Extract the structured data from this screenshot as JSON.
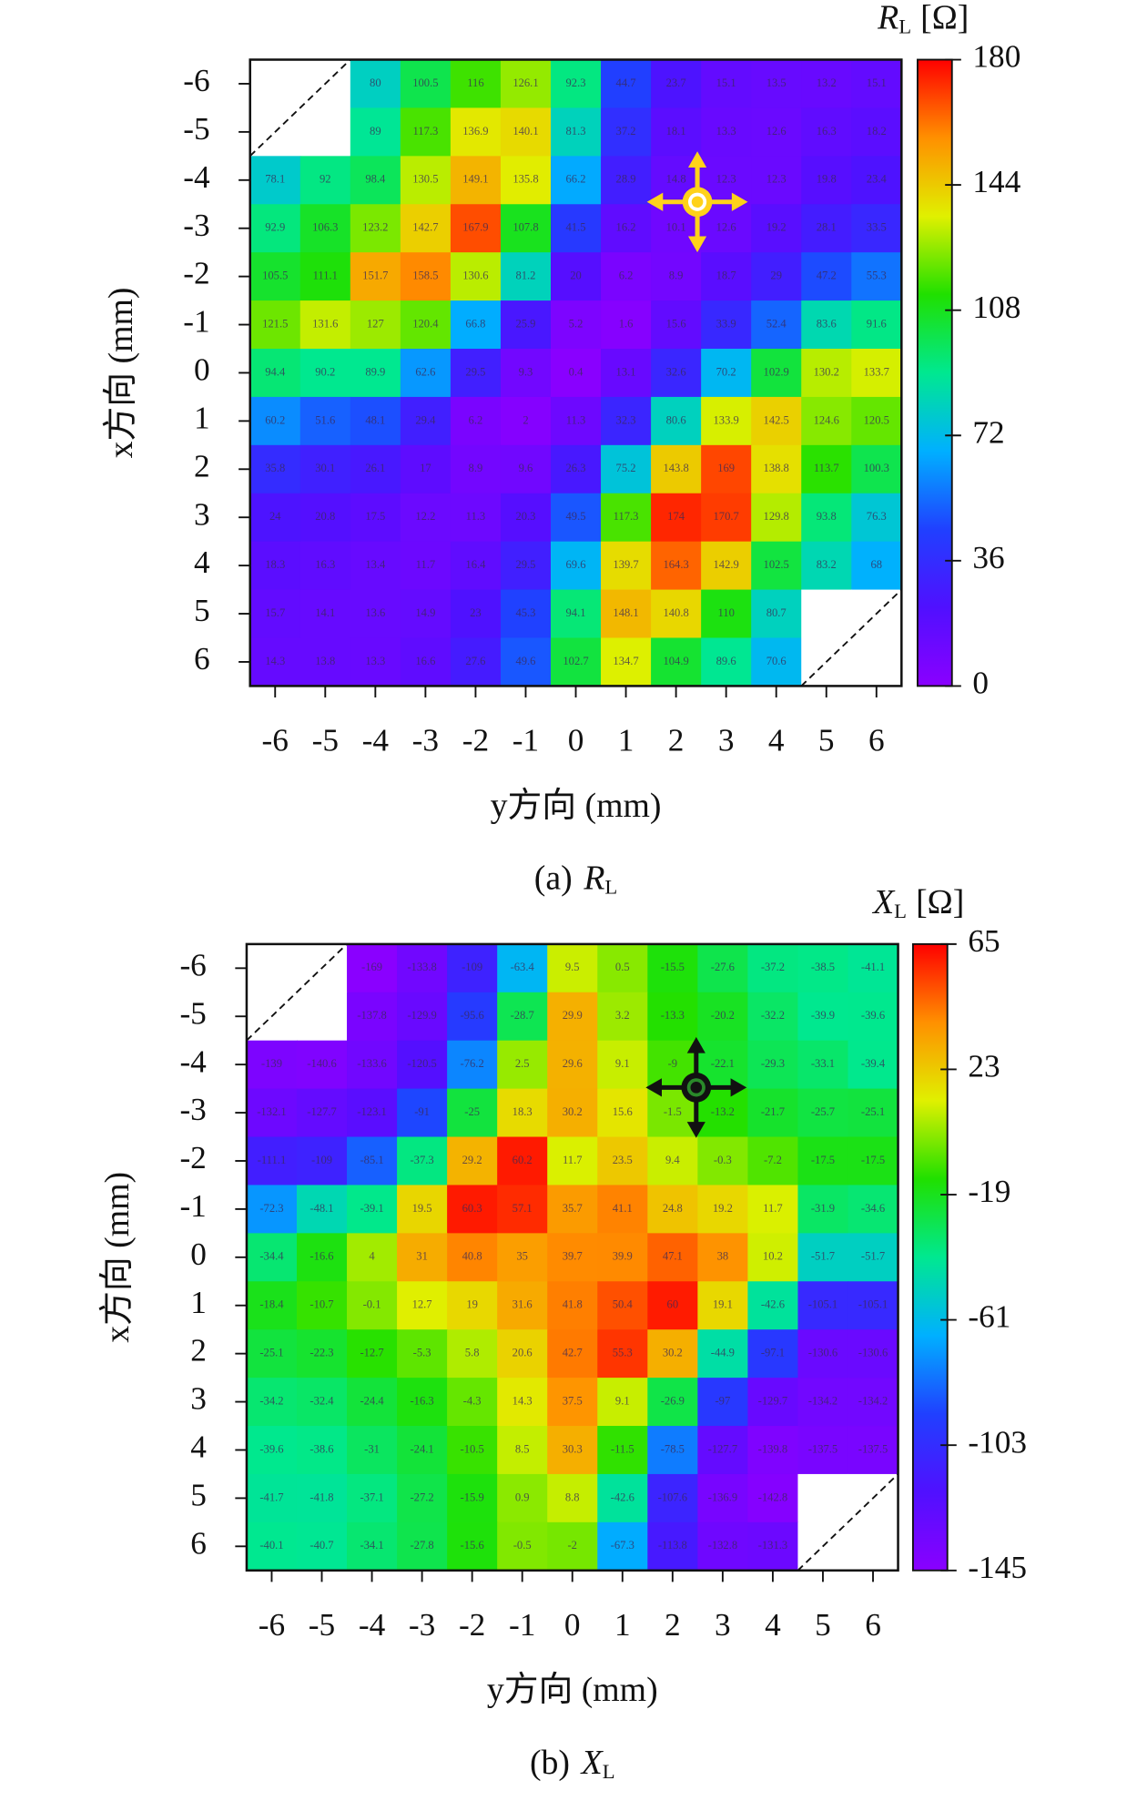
{
  "chart_data": [
    {
      "type": "heatmap",
      "colorbar_title": {
        "symbol": "R",
        "subscript": "L",
        "unit": "[Ω]"
      },
      "caption": {
        "label": "(a)",
        "symbol": "R",
        "subscript": "L"
      },
      "x_label": "y方向 (mm)",
      "y_label": "x方向 (mm)",
      "xlim": [
        -6.5,
        6.5
      ],
      "xticks": [
        -6,
        -5,
        -4,
        -3,
        -2,
        -1,
        0,
        1,
        2,
        3,
        4,
        5,
        6
      ],
      "ylim": [
        6.5,
        -6.5
      ],
      "yticks": [
        -6,
        -5,
        -4,
        -3,
        -2,
        -1,
        0,
        1,
        2,
        3,
        4,
        5,
        6
      ],
      "zlim": [
        0,
        180
      ],
      "zticks": [
        0,
        36,
        72,
        108,
        144,
        180
      ],
      "colormap": [
        "#8a00ff",
        "#5010ff",
        "#2040ff",
        "#00b0ff",
        "#00e890",
        "#20e000",
        "#e0f000",
        "#ff9000",
        "#ff0000"
      ],
      "values": [
        [
          null,
          null,
          80,
          100.5,
          116,
          126.1,
          92.3,
          44.7,
          23.7,
          15.1,
          13.5,
          13.2,
          15.1
        ],
        [
          null,
          null,
          89,
          117.3,
          136.9,
          140.1,
          81.3,
          37.2,
          18.1,
          13.3,
          12.6,
          16.3,
          18.2
        ],
        [
          78.1,
          92,
          98.4,
          130.5,
          149.1,
          135.8,
          66.2,
          28.9,
          14.8,
          12.3,
          12.3,
          19.8,
          23.4
        ],
        [
          92.9,
          106.3,
          123.2,
          142.7,
          167.9,
          107.8,
          41.5,
          16.2,
          10.1,
          12.6,
          19.2,
          28.1,
          33.5
        ],
        [
          105.5,
          111.1,
          151.7,
          158.5,
          130.6,
          81.2,
          20,
          6.2,
          8.9,
          18.7,
          29,
          47.2,
          55.3
        ],
        [
          121.5,
          131.6,
          127,
          120.4,
          66.8,
          25.9,
          5.2,
          1.6,
          15.6,
          33.9,
          52.4,
          83.6,
          91.6
        ],
        [
          94.4,
          90.2,
          89.9,
          62.6,
          29.5,
          9.3,
          0.4,
          13.1,
          32.6,
          70.2,
          102.9,
          130.2,
          133.7
        ],
        [
          60.2,
          51.6,
          48.1,
          29.4,
          6.2,
          2,
          11.3,
          32.3,
          80.6,
          133.9,
          142.5,
          124.6,
          120.5
        ],
        [
          35.8,
          30.1,
          26.1,
          17,
          8.9,
          9.6,
          26.3,
          75.2,
          143.8,
          169,
          138.8,
          113.7,
          100.3
        ],
        [
          24,
          20.8,
          17.5,
          12.2,
          11.3,
          20.3,
          49.5,
          117.3,
          174,
          170.7,
          129.8,
          93.8,
          76.3
        ],
        [
          18.3,
          16.3,
          13.4,
          11.7,
          16.4,
          29.5,
          69.6,
          139.7,
          164.3,
          142.9,
          102.5,
          83.2,
          68
        ],
        [
          15.7,
          14.1,
          13.6,
          14.9,
          23,
          45.3,
          94.1,
          148.1,
          140.8,
          110,
          80.7,
          null,
          null
        ],
        [
          14.3,
          13.8,
          13.3,
          16.6,
          27.6,
          49.6,
          102.7,
          134.7,
          104.9,
          89.6,
          70.6,
          null,
          null
        ]
      ]
    },
    {
      "type": "heatmap",
      "colorbar_title": {
        "symbol": "X",
        "subscript": "L",
        "unit": "[Ω]"
      },
      "caption": {
        "label": "(b)",
        "symbol": "X",
        "subscript": "L"
      },
      "x_label": "y方向 (mm)",
      "y_label": "x方向 (mm)",
      "xlim": [
        -6.5,
        6.5
      ],
      "xticks": [
        -6,
        -5,
        -4,
        -3,
        -2,
        -1,
        0,
        1,
        2,
        3,
        4,
        5,
        6
      ],
      "ylim": [
        6.5,
        -6.5
      ],
      "yticks": [
        -6,
        -5,
        -4,
        -3,
        -2,
        -1,
        0,
        1,
        2,
        3,
        4,
        5,
        6
      ],
      "zlim": [
        -145,
        65
      ],
      "zticks": [
        -145,
        -103,
        -61,
        -19,
        23,
        65
      ],
      "colormap": [
        "#8a00ff",
        "#5010ff",
        "#2040ff",
        "#00b0ff",
        "#00e890",
        "#20e000",
        "#e0f000",
        "#ff9000",
        "#ff0000"
      ],
      "values": [
        [
          null,
          null,
          -169,
          -133.8,
          -109,
          -63.4,
          9.5,
          0.5,
          -15.5,
          -27.6,
          -37.2,
          -38.5,
          -41.1
        ],
        [
          null,
          null,
          -137.8,
          -129.9,
          -95.6,
          -28.7,
          29.9,
          3.2,
          -13.3,
          -20.2,
          -32.2,
          -39.9,
          -39.6
        ],
        [
          -139,
          -140.6,
          -133.6,
          -120.5,
          -76.2,
          2.5,
          29.6,
          9.1,
          -9,
          -22.1,
          -29.3,
          -33.1,
          -39.4
        ],
        [
          -132.1,
          -127.7,
          -123.1,
          -91,
          -25,
          18.3,
          30.2,
          15.6,
          -1.5,
          -13.2,
          -21.7,
          -25.7,
          -25.1
        ],
        [
          -111.1,
          -109,
          -85.1,
          -37.3,
          29.2,
          60.2,
          11.7,
          23.5,
          9.4,
          -0.3,
          -7.2,
          -17.5,
          -17.5
        ],
        [
          -72.3,
          -48.1,
          -39.1,
          19.5,
          60.3,
          57.1,
          35.7,
          41.1,
          24.8,
          19.2,
          11.7,
          -31.9,
          -34.6
        ],
        [
          -34.4,
          -16.6,
          4,
          31,
          40.8,
          35,
          39.7,
          39.9,
          47.1,
          38,
          10.2,
          -51.7,
          -51.7
        ],
        [
          -18.4,
          -10.7,
          -0.1,
          12.7,
          19,
          31.6,
          41.8,
          50.4,
          60,
          19.1,
          -42.6,
          -105.1,
          -105.1
        ],
        [
          -25.1,
          -22.3,
          -12.7,
          -5.3,
          5.8,
          20.6,
          42.7,
          55.3,
          30.2,
          -44.9,
          -97.1,
          -130.6,
          -130.6
        ],
        [
          -34.2,
          -32.4,
          -24.4,
          -16.3,
          -4.3,
          14.3,
          37.5,
          9.1,
          -26.9,
          -97,
          -129.7,
          -134.2,
          -134.2
        ],
        [
          -39.6,
          -38.6,
          -31,
          -24.1,
          -10.5,
          8.5,
          30.3,
          -11.5,
          -78.5,
          -127.7,
          -139.8,
          -137.5,
          -137.5
        ],
        [
          -41.7,
          -41.8,
          -37.1,
          -27.2,
          -15.9,
          0.9,
          8.8,
          -42.6,
          -107.6,
          -136.9,
          -142.8,
          null,
          null
        ],
        [
          -40.1,
          -40.7,
          -34.1,
          -27.8,
          -15.6,
          -0.5,
          -2,
          -67.3,
          -113.8,
          -132.8,
          -131.3,
          null,
          null
        ]
      ]
    }
  ]
}
